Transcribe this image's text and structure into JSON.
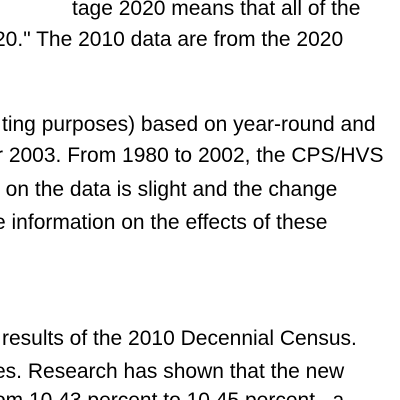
{
  "document": {
    "lines": [
      "tage 2020 means that all of the",
      "20.\"  The 2010 data are from the 2020",
      "ting purposes) based on year-round and",
      "r 2003. From 1980 to 2002, the CPS/HVS",
      "t on the data is slight and the change",
      "e information on the effects of these",
      "results of the 2010 Decennial Census.",
      "es. Research has shown that the new",
      "om 10.43 percent to 10.45 percent , a"
    ]
  }
}
